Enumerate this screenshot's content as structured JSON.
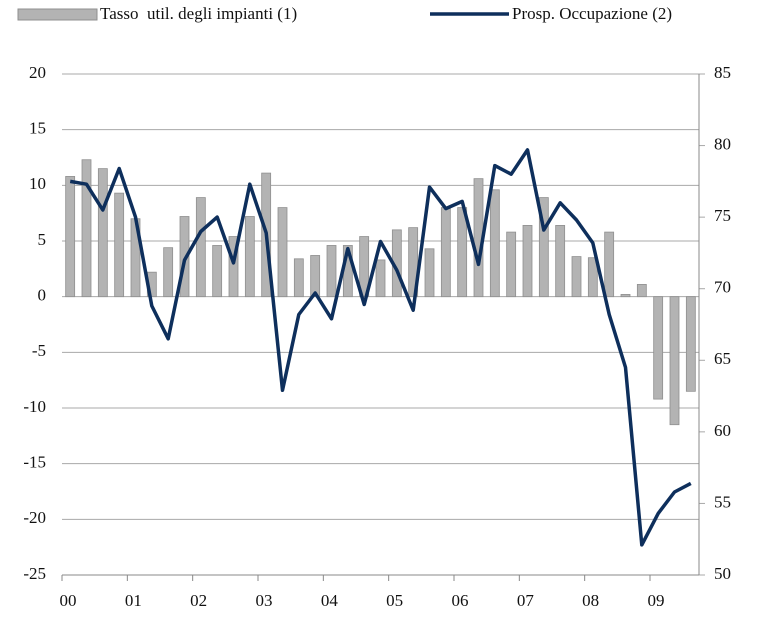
{
  "chart_data": {
    "type": "bar-line",
    "categories": [
      "00",
      null,
      null,
      null,
      "01",
      null,
      null,
      null,
      "02",
      null,
      null,
      null,
      "03",
      null,
      null,
      null,
      "04",
      null,
      null,
      null,
      "05",
      null,
      null,
      null,
      "06",
      null,
      null,
      null,
      "07",
      null,
      null,
      null,
      "08",
      null,
      null,
      null,
      "09",
      null,
      null
    ],
    "series": [
      {
        "name": "Tasso  util. degli impianti (1)",
        "type": "bar",
        "color": "#b3b3b3",
        "axis": "y",
        "values": [
          10.8,
          12.3,
          11.5,
          9.3,
          7.0,
          2.2,
          4.4,
          7.2,
          8.9,
          4.6,
          5.4,
          7.2,
          11.1,
          8.0,
          3.4,
          3.7,
          4.6,
          4.6,
          5.4,
          3.3,
          6.0,
          6.2,
          4.3,
          8.0,
          8.0,
          10.6,
          9.6,
          5.8,
          6.4,
          8.9,
          6.4,
          3.6,
          3.5,
          5.8,
          0.2,
          1.1,
          -9.2,
          -11.5,
          -8.5
        ]
      },
      {
        "name": "Prosp. Occupazione (2)",
        "type": "line",
        "color": "#0e2f5c",
        "axis": "y2",
        "values": [
          77.5,
          77.3,
          75.5,
          78.4,
          75.0,
          68.8,
          66.5,
          72.0,
          74.0,
          75.0,
          71.8,
          77.3,
          73.9,
          62.9,
          68.2,
          69.7,
          67.9,
          72.8,
          68.9,
          73.3,
          71.3,
          68.5,
          77.1,
          75.6,
          76.1,
          71.7,
          78.6,
          78.0,
          79.7,
          74.1,
          76.0,
          74.8,
          73.2,
          68.2,
          64.5,
          52.1,
          54.3,
          55.8,
          56.4
        ]
      }
    ],
    "ylim": [
      -25,
      20
    ],
    "yticks": [
      -25,
      -20,
      -15,
      -10,
      -5,
      0,
      5,
      10,
      15,
      20
    ],
    "y2lim": [
      50,
      85
    ],
    "y2ticks": [
      50,
      55,
      60,
      65,
      70,
      75,
      80,
      85
    ],
    "grid": true,
    "legend": "top"
  }
}
